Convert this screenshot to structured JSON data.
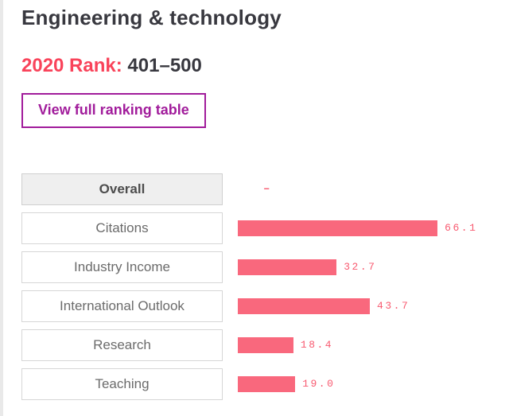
{
  "header": {
    "title": "Engineering & technology",
    "rank_label": "2020 Rank:",
    "rank_value": "401–500",
    "view_table_button": "View full ranking table"
  },
  "chart_data": {
    "type": "bar",
    "orientation": "horizontal",
    "categories": [
      "Overall",
      "Citations",
      "Industry Income",
      "International Outlook",
      "Research",
      "Teaching"
    ],
    "values": [
      null,
      66.1,
      32.7,
      43.7,
      18.4,
      19.0
    ],
    "value_labels": [
      "–",
      "66.1",
      "32.7",
      "43.7",
      "18.4",
      "19.0"
    ],
    "selected_category": "Overall",
    "xlim": [
      0,
      100
    ],
    "grid": false,
    "legend": "none"
  },
  "colors": {
    "accent_pink": "#f9435a",
    "bar_pink": "#f9687d",
    "value_pink": "#f85a70",
    "purple": "#a11c9b",
    "title_dark": "#38383f",
    "label_gray": "#6b6b6b"
  }
}
